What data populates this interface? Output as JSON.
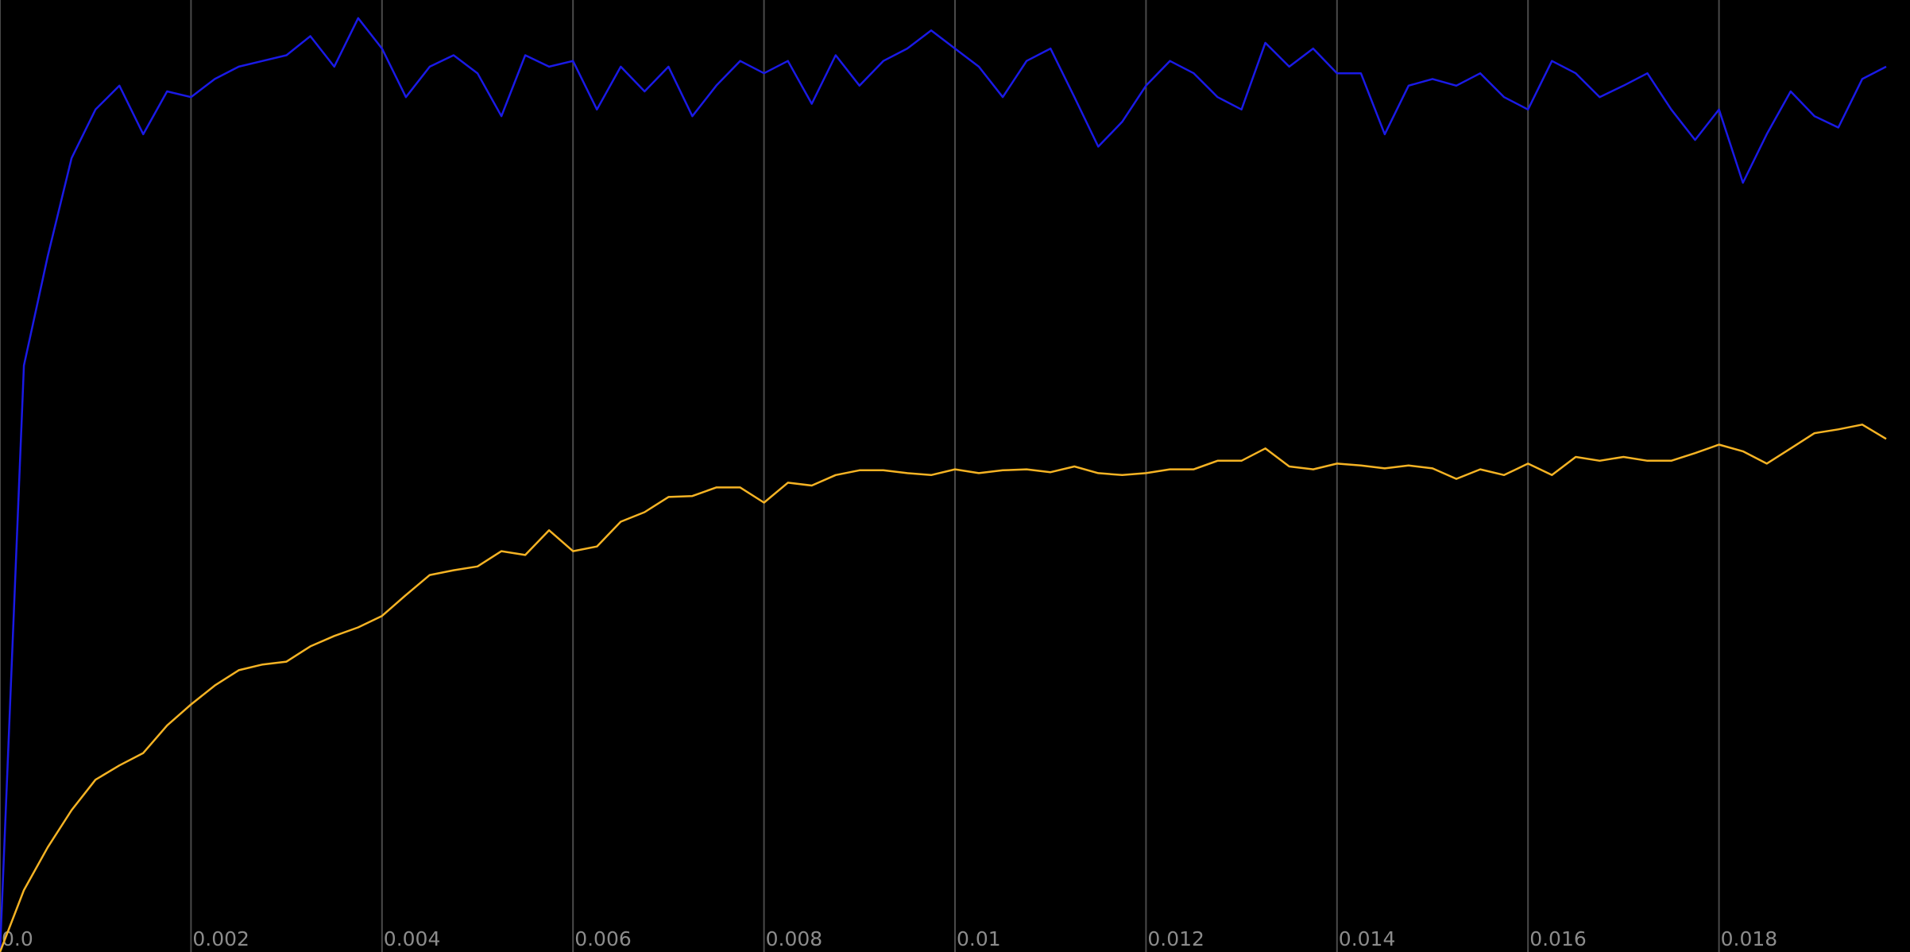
{
  "chart_data": {
    "type": "line",
    "x": [
      0,
      0.00025,
      0.0005,
      0.00075,
      0.001,
      0.00125,
      0.0015,
      0.00175,
      0.002,
      0.00225,
      0.0025,
      0.00275,
      0.003,
      0.00325,
      0.0035,
      0.00375,
      0.004,
      0.00425,
      0.0045,
      0.00475,
      0.005,
      0.00525,
      0.0055,
      0.00575,
      0.006,
      0.00625,
      0.0065,
      0.00675,
      0.007,
      0.00725,
      0.0075,
      0.00775,
      0.008,
      0.00825,
      0.0085,
      0.00875,
      0.009,
      0.00925,
      0.0095,
      0.00975,
      0.01,
      0.01025,
      0.0105,
      0.01075,
      0.011,
      0.01125,
      0.0115,
      0.01175,
      0.012,
      0.01225,
      0.0125,
      0.01275,
      0.013,
      0.01325,
      0.0135,
      0.01375,
      0.014,
      0.01425,
      0.0145,
      0.01475,
      0.015,
      0.01525,
      0.0155,
      0.01575,
      0.016,
      0.01625,
      0.0165,
      0.01675,
      0.017,
      0.01725,
      0.0175,
      0.01775,
      0.018,
      0.01825,
      0.0185,
      0.01875,
      0.019,
      0.01925,
      0.0195,
      0.01975
    ],
    "series": [
      {
        "color": "#1a1ae6",
        "values": [
          0,
          0.616,
          0.731,
          0.834,
          0.885,
          0.91,
          0.859,
          0.904,
          0.898,
          0.917,
          0.93,
          0.936,
          0.942,
          0.962,
          0.93,
          0.981,
          0.949,
          0.898,
          0.93,
          0.942,
          0.923,
          0.878,
          0.942,
          0.93,
          0.936,
          0.885,
          0.93,
          0.904,
          0.93,
          0.878,
          0.91,
          0.936,
          0.923,
          0.936,
          0.891,
          0.942,
          0.91,
          0.936,
          0.949,
          0.968,
          0.949,
          0.93,
          0.898,
          0.936,
          0.949,
          0.898,
          0.846,
          0.872,
          0.91,
          0.936,
          0.923,
          0.898,
          0.885,
          0.955,
          0.93,
          0.949,
          0.923,
          0.923,
          0.859,
          0.91,
          0.917,
          0.91,
          0.923,
          0.898,
          0.885,
          0.936,
          0.923,
          0.898,
          0.91,
          0.923,
          0.885,
          0.853,
          0.885,
          0.808,
          0.859,
          0.904,
          0.878,
          0.866,
          0.917,
          0.93
        ]
      },
      {
        "color": "#f5b324",
        "values": [
          0,
          0.065,
          0.11,
          0.149,
          0.181,
          0.196,
          0.209,
          0.238,
          0.26,
          0.28,
          0.296,
          0.302,
          0.305,
          0.321,
          0.332,
          0.341,
          0.353,
          0.375,
          0.396,
          0.401,
          0.405,
          0.421,
          0.417,
          0.443,
          0.421,
          0.426,
          0.452,
          0.462,
          0.478,
          0.479,
          0.488,
          0.488,
          0.472,
          0.493,
          0.49,
          0.501,
          0.506,
          0.506,
          0.503,
          0.501,
          0.507,
          0.503,
          0.506,
          0.507,
          0.504,
          0.51,
          0.503,
          0.501,
          0.503,
          0.507,
          0.507,
          0.516,
          0.516,
          0.529,
          0.51,
          0.507,
          0.513,
          0.511,
          0.508,
          0.511,
          0.508,
          0.497,
          0.507,
          0.501,
          0.513,
          0.501,
          0.52,
          0.516,
          0.52,
          0.516,
          0.516,
          0.524,
          0.533,
          0.526,
          0.513,
          0.529,
          0.545,
          0.549,
          0.554,
          0.539
        ]
      }
    ],
    "xlim": [
      0,
      0.02
    ],
    "ylim": [
      0,
      1
    ],
    "xticks": [
      {
        "value": 0,
        "label": "0.0"
      },
      0.002,
      0.004,
      0.006,
      0.008,
      0.01,
      0.012,
      0.014,
      0.016,
      0.018
    ],
    "grid": true
  }
}
